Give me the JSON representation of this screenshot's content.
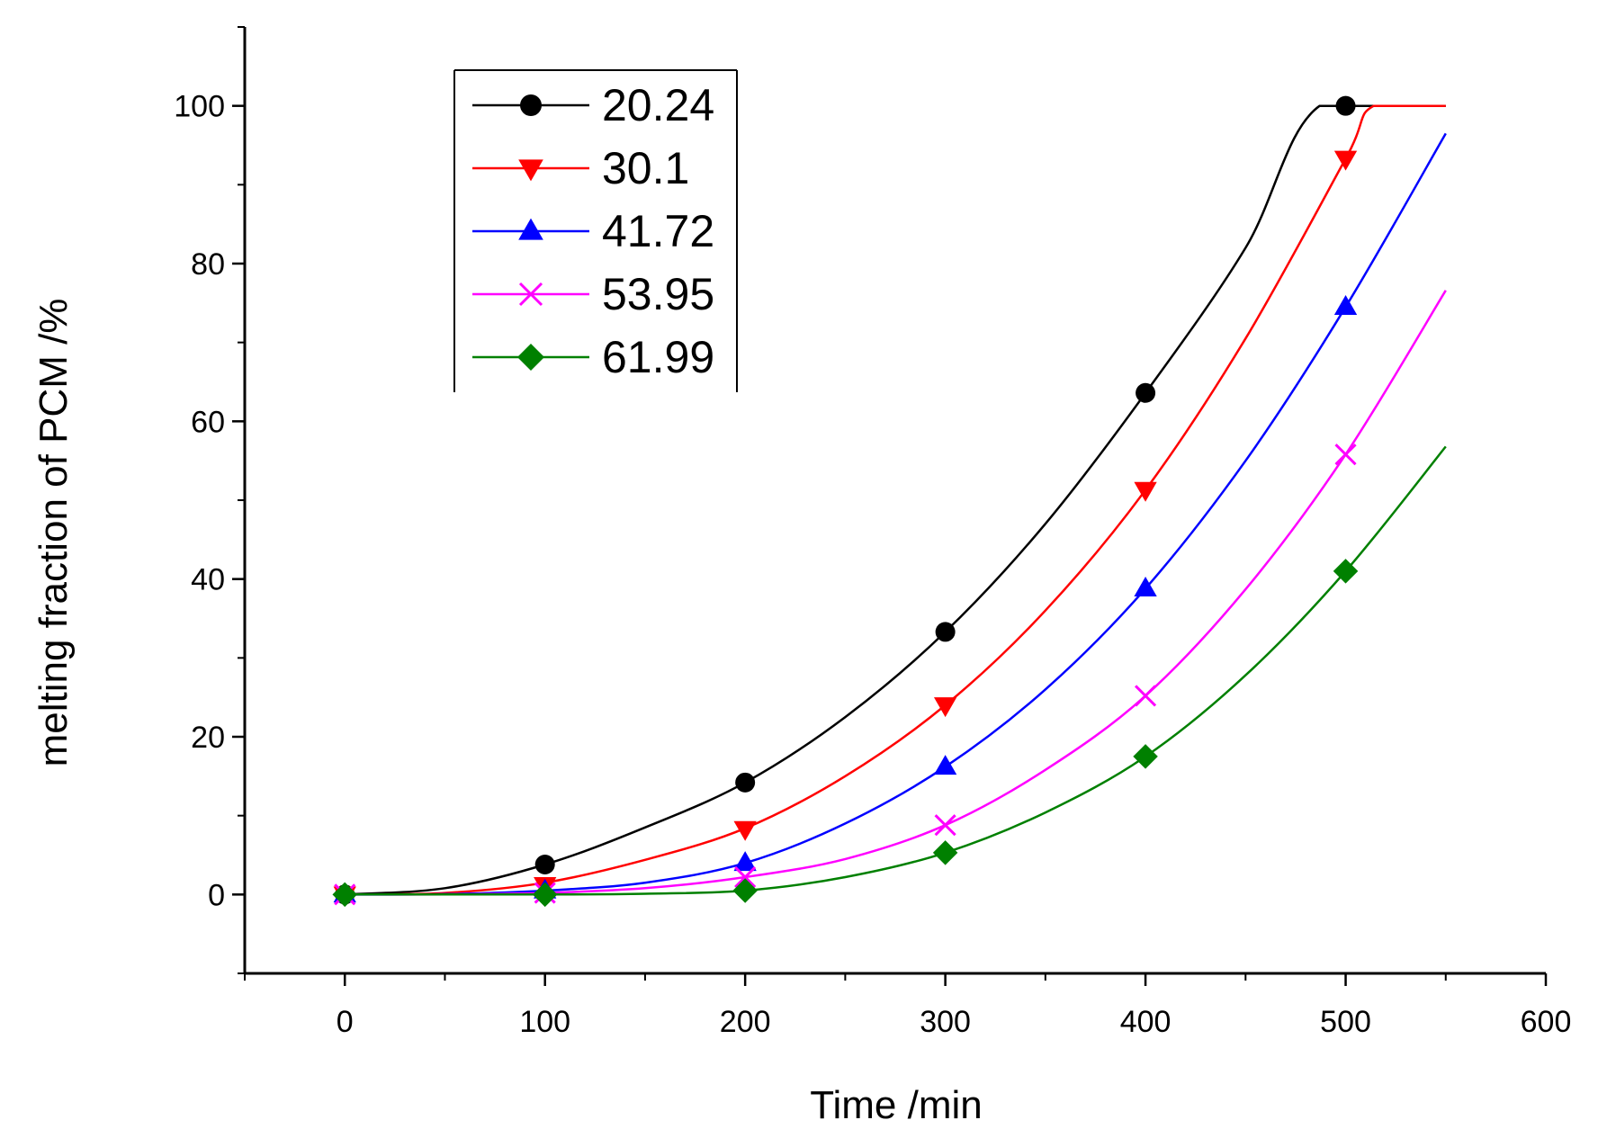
{
  "chart_data": {
    "type": "line",
    "xlabel": "Time /min",
    "ylabel": "melting fraction of PCM /%",
    "xlim": [
      -50,
      600
    ],
    "ylim": [
      -10,
      110
    ],
    "xticks": [
      0,
      100,
      200,
      300,
      400,
      500,
      600
    ],
    "yticks": [
      0,
      20,
      40,
      60,
      80,
      100
    ],
    "x_tick_labels": [
      "0",
      "100",
      "200",
      "300",
      "400",
      "500",
      "600"
    ],
    "y_tick_labels": [
      "0",
      "20",
      "40",
      "60",
      "80",
      "100"
    ],
    "legend_position": "top-left",
    "grid": false,
    "x": [
      0,
      100,
      200,
      300,
      400,
      500
    ],
    "series": [
      {
        "name": "20.24",
        "color": "#000000",
        "marker": "circle",
        "values": [
          0,
          3.8,
          14.2,
          33.3,
          63.6,
          100
        ],
        "fit_curve": [
          [
            0,
            0
          ],
          [
            50,
            0.8
          ],
          [
            100,
            3.8
          ],
          [
            150,
            8.5
          ],
          [
            200,
            14.2
          ],
          [
            250,
            22.5
          ],
          [
            300,
            33.3
          ],
          [
            350,
            47
          ],
          [
            400,
            63.6
          ],
          [
            450,
            82
          ],
          [
            487,
            100
          ],
          [
            550,
            100
          ]
        ]
      },
      {
        "name": "30.1",
        "color": "#ff0000",
        "marker": "triangle-down",
        "values": [
          0,
          1.2,
          8.3,
          24.0,
          51.3,
          93.3
        ],
        "fit_curve": [
          [
            0,
            0
          ],
          [
            50,
            0.2
          ],
          [
            100,
            1.5
          ],
          [
            150,
            4.4
          ],
          [
            200,
            8.4
          ],
          [
            250,
            15
          ],
          [
            300,
            24
          ],
          [
            350,
            36
          ],
          [
            400,
            51.3
          ],
          [
            450,
            70.5
          ],
          [
            500,
            93.3
          ],
          [
            514,
            100
          ],
          [
            550,
            100
          ]
        ]
      },
      {
        "name": "41.72",
        "color": "#0000ff",
        "marker": "triangle-up",
        "values": [
          0,
          0.5,
          4.0,
          16.2,
          38.8,
          74.5
        ],
        "fit_curve": [
          [
            0,
            0
          ],
          [
            50,
            0.05
          ],
          [
            100,
            0.5
          ],
          [
            150,
            1.5
          ],
          [
            200,
            4
          ],
          [
            250,
            9
          ],
          [
            300,
            16.2
          ],
          [
            350,
            26
          ],
          [
            400,
            38.8
          ],
          [
            450,
            55
          ],
          [
            500,
            74.5
          ],
          [
            550,
            96.5
          ]
        ]
      },
      {
        "name": "53.95",
        "color": "#ff00ff",
        "marker": "cross",
        "values": [
          0,
          0.2,
          2.2,
          8.8,
          25.2,
          55.8
        ],
        "fit_curve": [
          [
            0,
            0
          ],
          [
            50,
            0.02
          ],
          [
            100,
            0.2
          ],
          [
            150,
            0.8
          ],
          [
            200,
            2.2
          ],
          [
            250,
            4.5
          ],
          [
            300,
            8.8
          ],
          [
            350,
            15.8
          ],
          [
            400,
            25.2
          ],
          [
            450,
            38.7
          ],
          [
            500,
            55.8
          ],
          [
            550,
            76.6
          ]
        ]
      },
      {
        "name": "61.99",
        "color": "#008000",
        "marker": "diamond",
        "values": [
          0,
          0,
          0.5,
          5.3,
          17.5,
          41.0
        ],
        "fit_curve": [
          [
            0,
            0
          ],
          [
            100,
            0
          ],
          [
            150,
            0.1
          ],
          [
            200,
            0.5
          ],
          [
            250,
            2.2
          ],
          [
            300,
            5.3
          ],
          [
            350,
            10.4
          ],
          [
            400,
            17.5
          ],
          [
            450,
            27.8
          ],
          [
            500,
            41
          ],
          [
            550,
            56.8
          ]
        ]
      }
    ]
  }
}
